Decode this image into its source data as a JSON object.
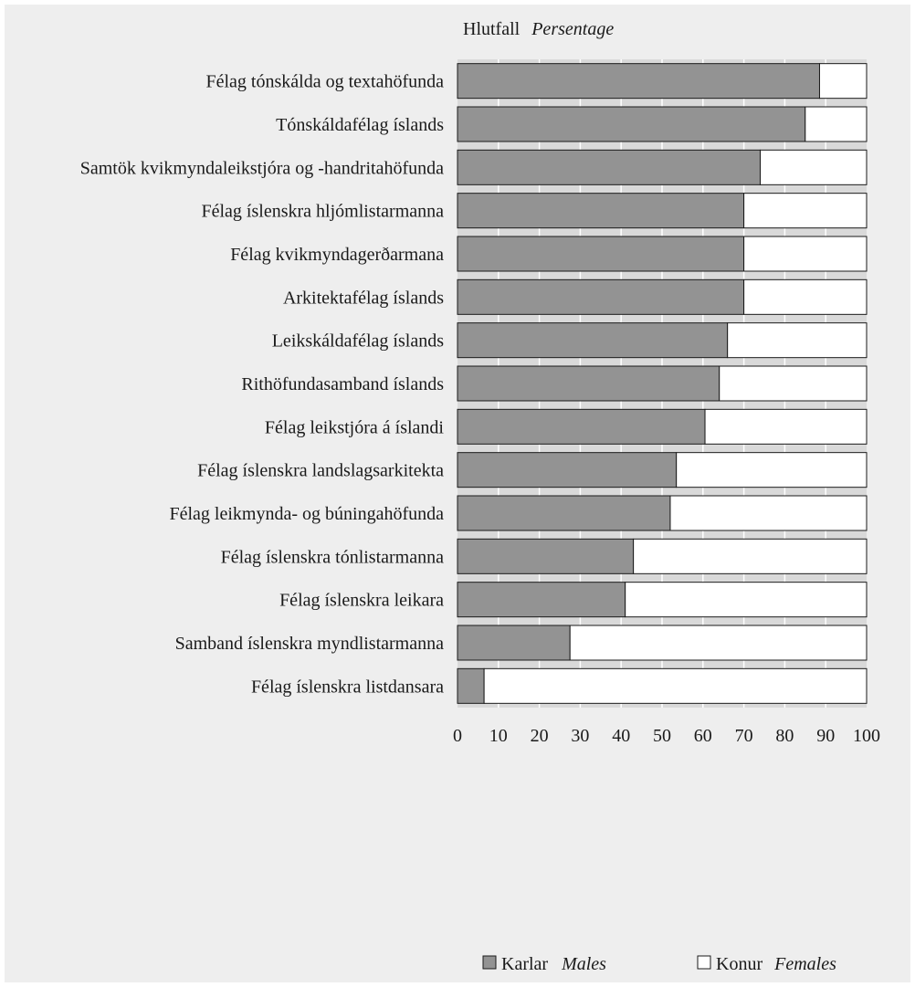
{
  "chart_data": {
    "type": "bar",
    "orientation": "horizontal",
    "stacked": true,
    "percent_axis_title": "Hlutfall",
    "percent_axis_title_en": "Persentage",
    "categories": [
      "Félag tónskálda og textahöfunda",
      "Tónskáldafélag íslands",
      "Samtök kvikmyndaleikstjóra og -handritahöfunda",
      "Félag íslenskra hljómlistarmanna",
      "Félag kvikmyndagerðarmana",
      "Arkitektafélag íslands",
      "Leikskáldafélag íslands",
      "Rithöfundasamband íslands",
      "Félag leikstjóra á íslandi",
      "Félag íslenskra landslagsarkitekta",
      "Félag leikmynda- og búningahöfunda",
      "Félag íslenskra tónlistarmanna",
      "Félag íslenskra leikara",
      "Samband íslenskra myndlistarmanna",
      "Félag íslenskra listdansara"
    ],
    "series": [
      {
        "name": "Karlar",
        "name_en": "Males",
        "color": "#939393",
        "values": [
          88.5,
          85,
          74,
          70,
          70,
          70,
          66,
          64,
          60.5,
          53.5,
          52,
          43,
          41,
          27.5,
          6.5
        ]
      },
      {
        "name": "Konur",
        "name_en": "Females",
        "color": "#ffffff",
        "values": [
          11.5,
          15,
          26,
          30,
          30,
          30,
          34,
          36,
          39.5,
          46.5,
          48,
          57,
          59,
          72.5,
          93.5
        ]
      }
    ],
    "xlim": [
      0,
      100
    ],
    "xticks": [
      0,
      10,
      20,
      30,
      40,
      50,
      60,
      70,
      80,
      90,
      100
    ],
    "grid": true,
    "legend_position": "bottom",
    "plot_background": "#d9d9d9",
    "panel_background": "#eeeeee"
  }
}
